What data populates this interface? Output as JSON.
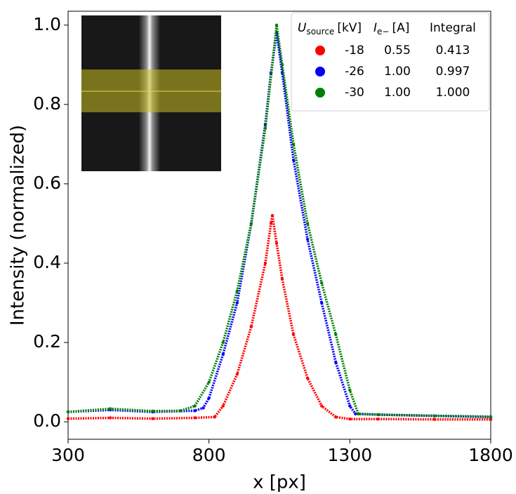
{
  "chart_data": {
    "type": "scatter",
    "xlabel": "x [px]",
    "ylabel": "Intensity (normalized)",
    "xlim": [
      300,
      1800
    ],
    "ylim": [
      -0.044,
      1.035
    ],
    "xticks": [
      300,
      800,
      1300,
      1800
    ],
    "yticks": [
      {
        "value": 0,
        "label": "0.0"
      },
      0.2,
      0.4,
      0.6,
      0.8,
      {
        "value": 1,
        "label": "1.0"
      }
    ],
    "legend": {
      "position": "upper right",
      "headers": [
        {
          "symbol": "U",
          "subscript": "source",
          "unit": "[kV]"
        },
        {
          "symbol": "I",
          "subscript": "e−",
          "unit": "[A]"
        },
        {
          "text": "Integral"
        }
      ]
    },
    "series": [
      {
        "name": "-18",
        "current": "0.55",
        "integral": "0.413",
        "color": "#ff0000",
        "x": [
          300,
          450,
          600,
          750,
          820,
          850,
          900,
          950,
          1000,
          1020,
          1025,
          1040,
          1060,
          1100,
          1150,
          1200,
          1250,
          1300,
          1400,
          1600,
          1800
        ],
        "values": [
          0.008,
          0.01,
          0.008,
          0.01,
          0.012,
          0.04,
          0.12,
          0.24,
          0.4,
          0.5,
          0.52,
          0.45,
          0.36,
          0.22,
          0.11,
          0.04,
          0.012,
          0.007,
          0.007,
          0.006,
          0.006
        ]
      },
      {
        "name": "-26",
        "current": "1.00",
        "integral": "0.997",
        "color": "#0000ff",
        "x": [
          300,
          450,
          600,
          750,
          780,
          800,
          850,
          900,
          950,
          1000,
          1020,
          1040,
          1060,
          1100,
          1150,
          1200,
          1250,
          1300,
          1320,
          1400,
          1600,
          1800
        ],
        "values": [
          0.025,
          0.03,
          0.025,
          0.028,
          0.035,
          0.06,
          0.17,
          0.3,
          0.5,
          0.75,
          0.88,
          0.98,
          0.88,
          0.66,
          0.46,
          0.3,
          0.15,
          0.04,
          0.02,
          0.018,
          0.015,
          0.012
        ]
      },
      {
        "name": "-30",
        "current": "1.00",
        "integral": "1.000",
        "color": "#008000",
        "x": [
          300,
          450,
          600,
          700,
          750,
          800,
          850,
          900,
          950,
          1000,
          1040,
          1060,
          1100,
          1150,
          1200,
          1250,
          1300,
          1330,
          1400,
          1600,
          1800
        ],
        "values": [
          0.025,
          0.033,
          0.027,
          0.028,
          0.04,
          0.1,
          0.2,
          0.33,
          0.5,
          0.74,
          1.0,
          0.9,
          0.7,
          0.5,
          0.35,
          0.22,
          0.08,
          0.02,
          0.018,
          0.015,
          0.013
        ]
      }
    ]
  }
}
